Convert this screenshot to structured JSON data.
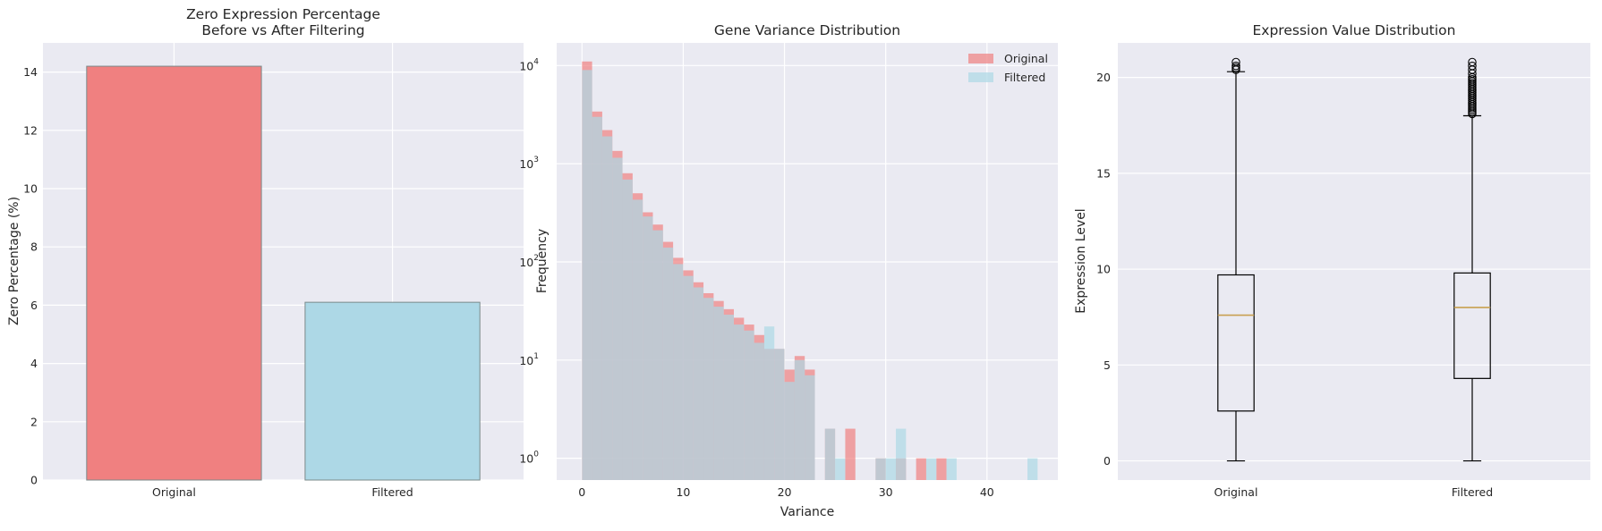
{
  "charts": [
    {
      "title_line1": "Zero Expression Percentage",
      "title_line2": "Before vs After Filtering",
      "ylabel": "Zero Percentage (%)",
      "xlabel": ""
    },
    {
      "title_line1": "Gene Variance Distribution",
      "ylabel": "Frequency",
      "xlabel": "Variance",
      "legend": [
        "Original",
        "Filtered"
      ]
    },
    {
      "title_line1": "Expression Value Distribution",
      "ylabel": "Expression Level",
      "xlabel": ""
    }
  ],
  "colors": {
    "panel_bg": "#eaeaf2",
    "grid": "#ffffff",
    "original": "#f08080",
    "filtered": "#add8e6",
    "median": "#c8a050"
  },
  "chart_data": [
    {
      "type": "bar",
      "title": "Zero Expression Percentage\nBefore vs After Filtering",
      "categories": [
        "Original",
        "Filtered"
      ],
      "values": [
        14.2,
        6.1
      ],
      "colors": [
        "#f08080",
        "#add8e6"
      ],
      "ylabel": "Zero Percentage (%)",
      "ylim": [
        0,
        15
      ],
      "yticks": [
        0,
        2,
        4,
        6,
        8,
        10,
        12,
        14
      ],
      "grid": true
    },
    {
      "type": "histogram",
      "title": "Gene Variance Distribution",
      "xlabel": "Variance",
      "ylabel": "Frequency",
      "yscale": "log",
      "xlim": [
        -2.5,
        47
      ],
      "ylim": [
        0.6,
        17000
      ],
      "xticks": [
        0,
        10,
        20,
        30,
        40
      ],
      "ytick_labels": [
        "10^0",
        "10^1",
        "10^2",
        "10^3",
        "10^4"
      ],
      "legend_position": "top-right",
      "bin_width": 1,
      "series": [
        {
          "name": "Original",
          "color": "#f08080",
          "bins": [
            [
              0,
              11000
            ],
            [
              1,
              3400
            ],
            [
              2,
              2200
            ],
            [
              3,
              1350
            ],
            [
              4,
              800
            ],
            [
              5,
              500
            ],
            [
              6,
              320
            ],
            [
              7,
              240
            ],
            [
              8,
              160
            ],
            [
              9,
              110
            ],
            [
              10,
              82
            ],
            [
              11,
              62
            ],
            [
              12,
              48
            ],
            [
              13,
              40
            ],
            [
              14,
              33
            ],
            [
              15,
              27
            ],
            [
              16,
              23
            ],
            [
              17,
              18
            ],
            [
              18,
              13
            ],
            [
              19,
              13
            ],
            [
              20,
              8
            ],
            [
              21,
              11
            ],
            [
              22,
              8
            ],
            [
              24,
              2
            ],
            [
              26,
              2
            ],
            [
              29,
              1
            ],
            [
              31,
              1
            ],
            [
              33,
              1
            ],
            [
              35,
              1
            ]
          ]
        },
        {
          "name": "Filtered",
          "color": "#add8e6",
          "bins": [
            [
              0,
              9000
            ],
            [
              1,
              3000
            ],
            [
              2,
              1900
            ],
            [
              3,
              1150
            ],
            [
              4,
              690
            ],
            [
              5,
              430
            ],
            [
              6,
              290
            ],
            [
              7,
              210
            ],
            [
              8,
              140
            ],
            [
              9,
              95
            ],
            [
              10,
              72
            ],
            [
              11,
              55
            ],
            [
              12,
              43
            ],
            [
              13,
              35
            ],
            [
              14,
              29
            ],
            [
              15,
              23
            ],
            [
              16,
              20
            ],
            [
              17,
              15
            ],
            [
              18,
              22
            ],
            [
              19,
              13
            ],
            [
              20,
              6
            ],
            [
              21,
              10
            ],
            [
              22,
              7
            ],
            [
              24,
              2
            ],
            [
              25,
              1
            ],
            [
              29,
              1
            ],
            [
              30,
              1
            ],
            [
              31,
              2
            ],
            [
              34,
              1
            ],
            [
              36,
              1
            ],
            [
              44,
              1
            ]
          ]
        }
      ]
    },
    {
      "type": "box",
      "title": "Expression Value Distribution",
      "ylabel": "Expression Level",
      "categories": [
        "Original",
        "Filtered"
      ],
      "ylim": [
        -1,
        21.8
      ],
      "yticks": [
        0,
        5,
        10,
        15,
        20
      ],
      "boxes": [
        {
          "name": "Original",
          "min": 0,
          "q1": 2.6,
          "median": 7.6,
          "q3": 9.7,
          "whisker_high": 20.3,
          "outliers": [
            20.4,
            20.5,
            20.6,
            20.8
          ]
        },
        {
          "name": "Filtered",
          "min": 0,
          "q1": 4.3,
          "median": 8.0,
          "q3": 9.8,
          "whisker_high": 18.0,
          "outliers": [
            18.1,
            18.2,
            18.3,
            18.4,
            18.5,
            18.6,
            18.7,
            18.8,
            18.9,
            19.0,
            19.1,
            19.2,
            19.3,
            19.4,
            19.5,
            19.6,
            19.7,
            19.8,
            19.9,
            20.0,
            20.2,
            20.4,
            20.6,
            20.8
          ]
        }
      ]
    }
  ]
}
